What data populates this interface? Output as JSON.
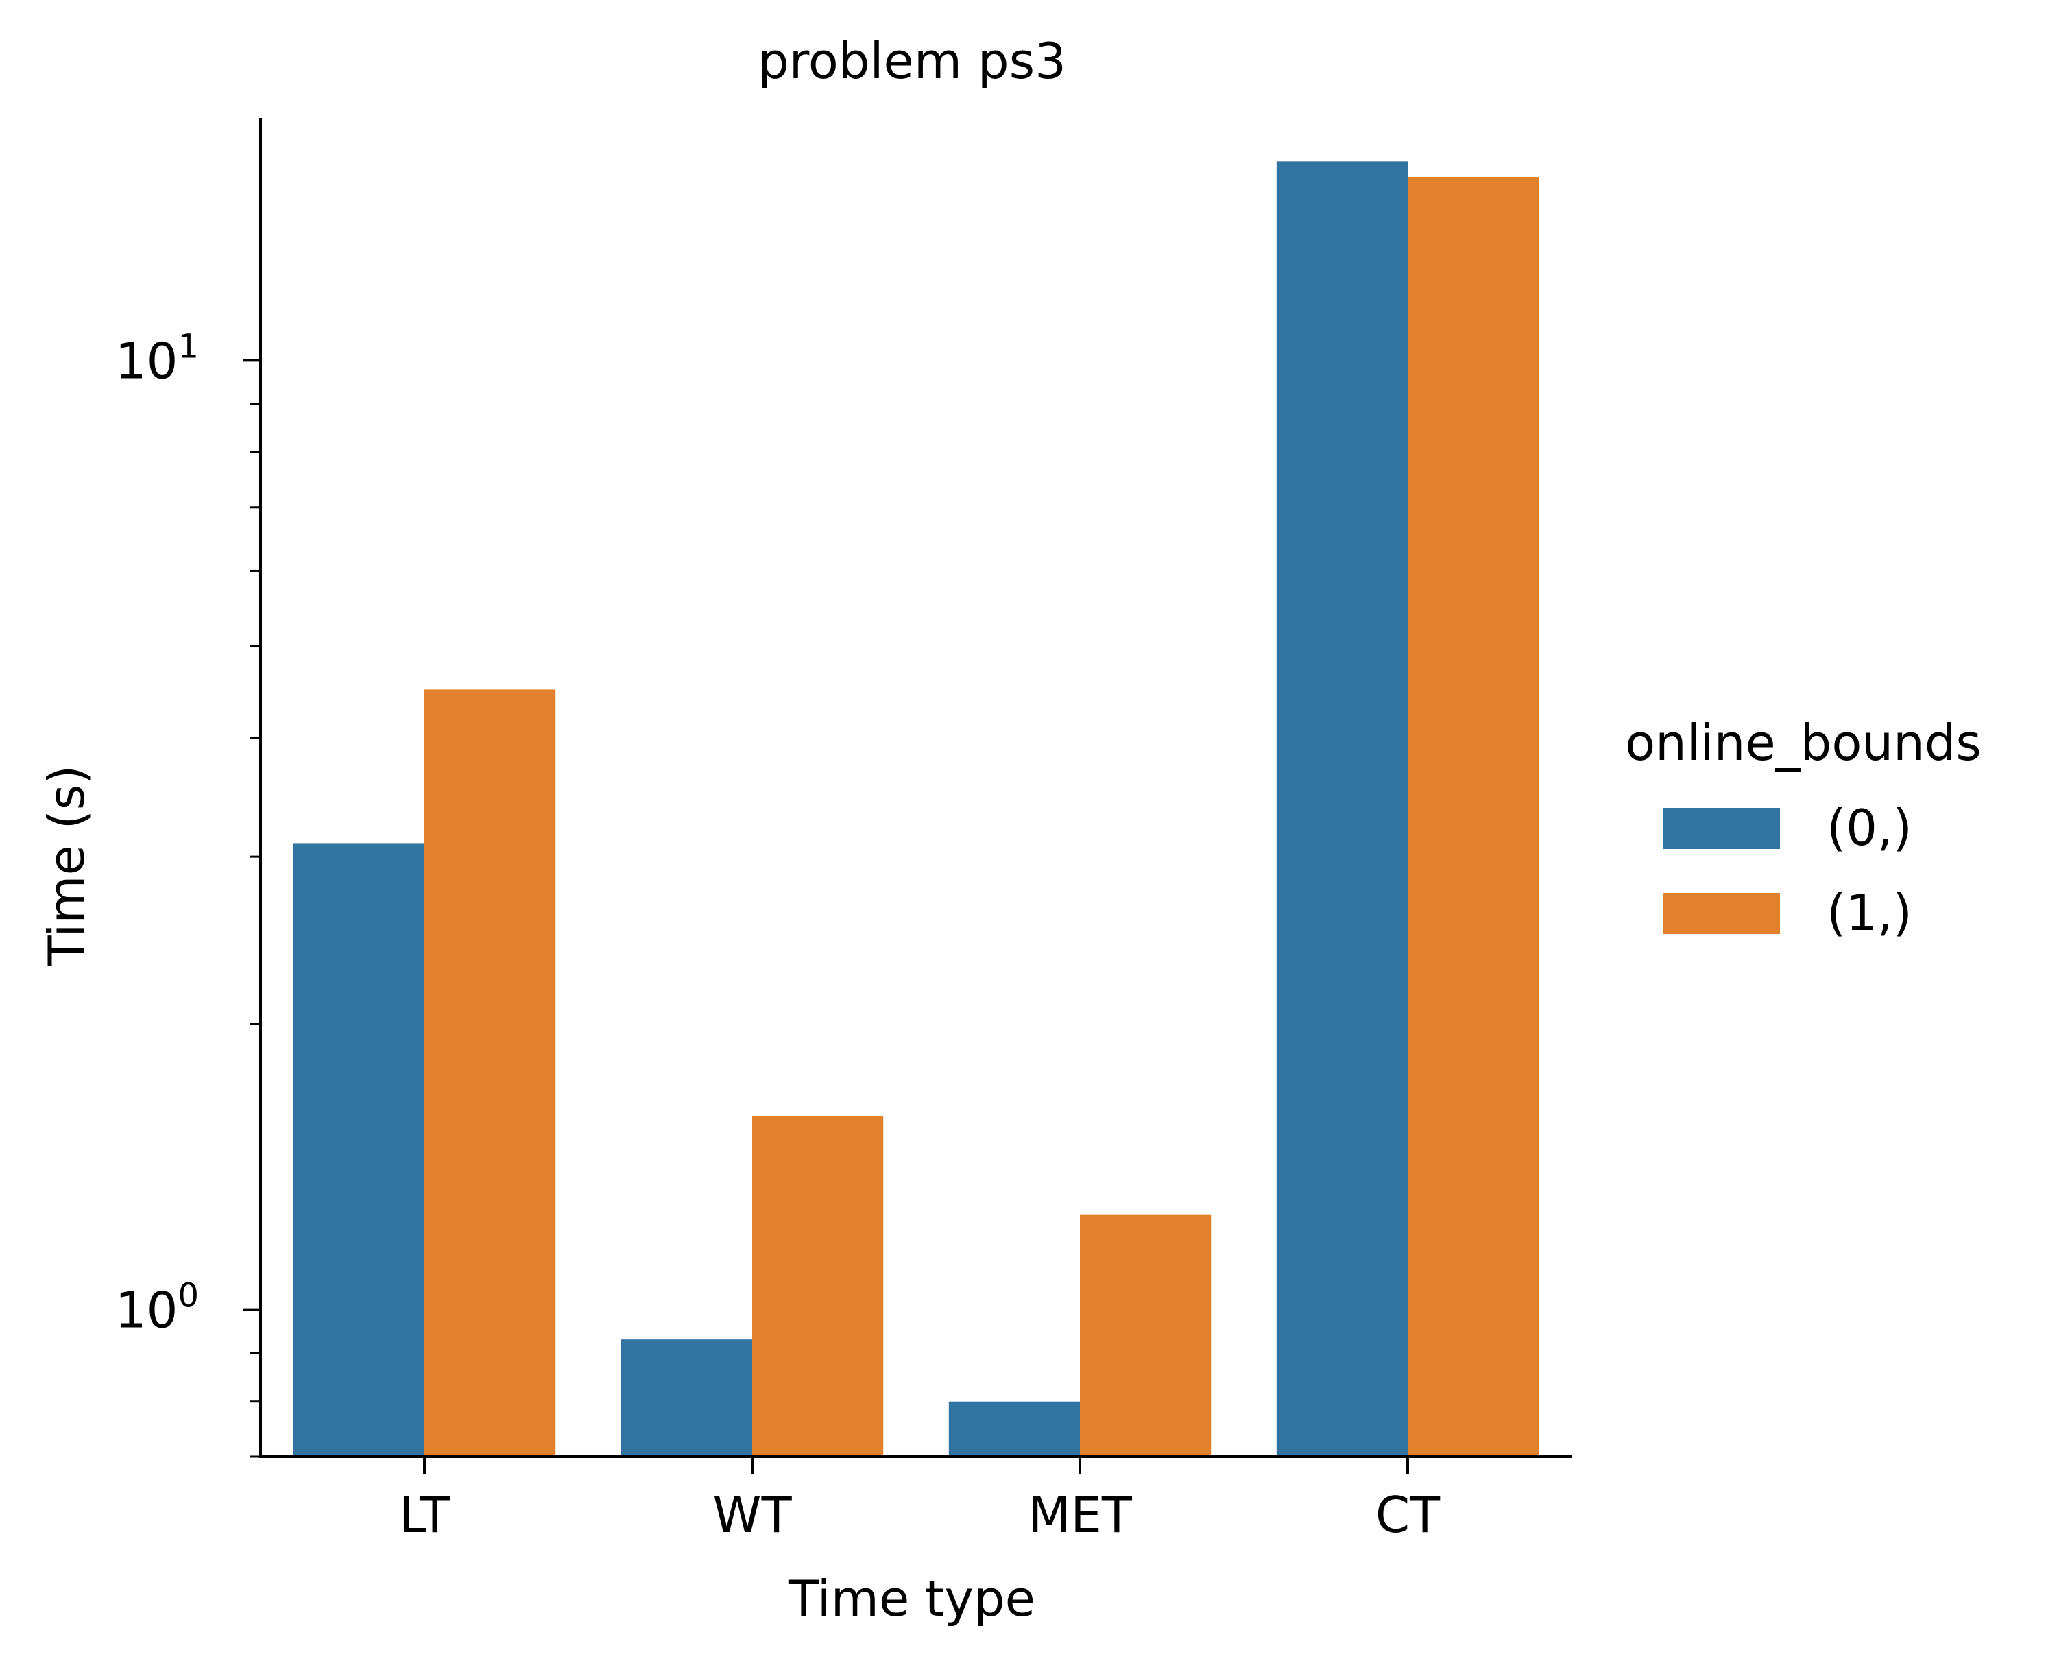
{
  "chart_data": {
    "type": "bar",
    "title": "problem ps3",
    "xlabel": "Time type",
    "ylabel": "Time (s)",
    "yscale": "log",
    "ylim": [
      0.7,
      18.0
    ],
    "categories": [
      "LT",
      "WT",
      "MET",
      "CT"
    ],
    "y_ticks": [
      {
        "value": 1,
        "base": "10",
        "exp": "0"
      },
      {
        "value": 10,
        "base": "10",
        "exp": "1"
      }
    ],
    "legend": {
      "title": "online_bounds",
      "placement": "center-right"
    },
    "series": [
      {
        "name": "(0,)",
        "color": "#3274a1",
        "values": [
          3.1,
          0.93,
          0.8,
          16.2
        ]
      },
      {
        "name": "(1,)",
        "color": "#e1812c",
        "values": [
          4.5,
          1.6,
          1.26,
          15.6
        ]
      }
    ]
  }
}
